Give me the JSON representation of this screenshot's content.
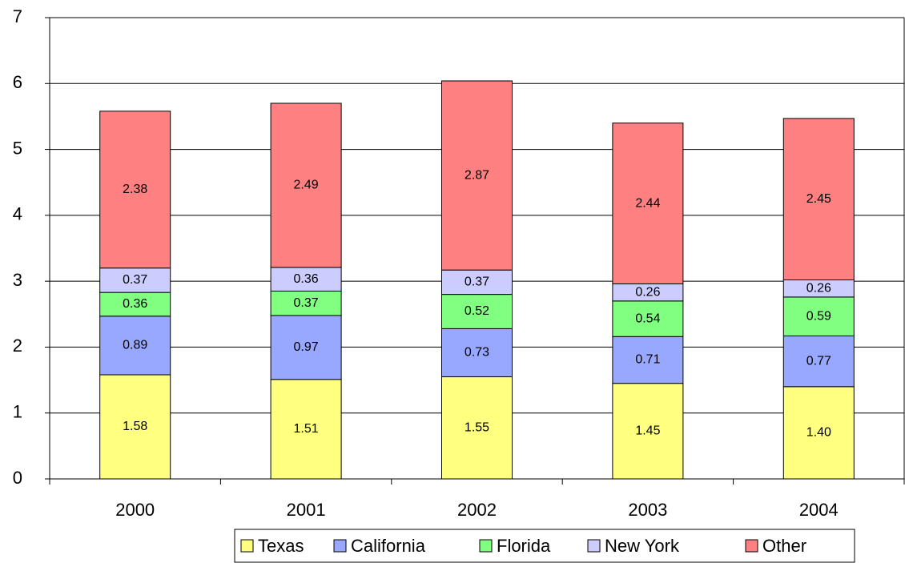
{
  "chart_data": {
    "type": "stacked-bar",
    "categories": [
      "2000",
      "2001",
      "2002",
      "2003",
      "2004"
    ],
    "series": [
      {
        "name": "Texas",
        "color": "#ffff80",
        "values": [
          1.58,
          1.51,
          1.55,
          1.45,
          1.4
        ],
        "value_labels": [
          "1.58",
          "1.51",
          "1.55",
          "1.45",
          "1.40"
        ]
      },
      {
        "name": "California",
        "color": "#99a8ff",
        "values": [
          0.89,
          0.97,
          0.73,
          0.71,
          0.77
        ]
      },
      {
        "name": "Florida",
        "color": "#80ff80",
        "values": [
          0.36,
          0.37,
          0.52,
          0.54,
          0.59
        ]
      },
      {
        "name": "New York",
        "color": "#ccccff",
        "values": [
          0.37,
          0.36,
          0.37,
          0.26,
          0.26
        ]
      },
      {
        "name": "Other",
        "color": "#ff8080",
        "values": [
          2.38,
          2.49,
          2.87,
          2.44,
          2.45
        ]
      }
    ],
    "ylim": [
      0,
      7
    ],
    "yticks": [
      0,
      1,
      2,
      3,
      4,
      5,
      6,
      7
    ],
    "grid": true,
    "legend": "bottom"
  }
}
